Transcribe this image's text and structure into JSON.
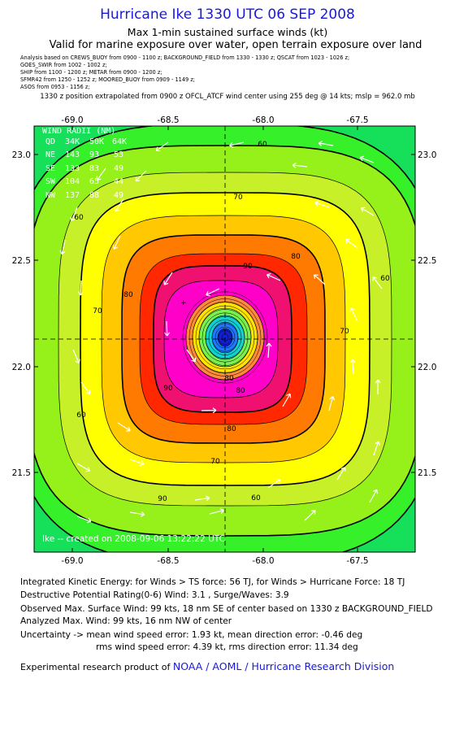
{
  "header": {
    "title": "Hurricane Ike 1330 UTC 06 SEP 2008",
    "subtitle": "Max 1-min sustained surface winds (kt)",
    "valid": "Valid for marine exposure over water, open terrain exposure over land",
    "sources": [
      "Analysis based on   CREWS_BUOY from 0900 - 1100 z;  BACKGROUND_FIELD from 1330 - 1330 z;  QSCAT from 1023 - 1026 z;",
      "GOES_SWIR from 1002 - 1002 z;",
      "SHIP from 1100 - 1200 z;  METAR from 0900 - 1200 z;",
      "SFMR42 from 1250 - 1252 z;  MOORED_BUOY from 0909 - 1149 z;",
      "ASOS from 0953 - 1156 z;"
    ],
    "position_note": "1330 z position extrapolated from 0900 z OFCL_ATCF wind center using 255 deg @ 14 kts; mslp = 962.0 mb"
  },
  "map": {
    "lon_ticks": [
      "-69.0",
      "-68.5",
      "-68.0",
      "-67.5"
    ],
    "lat_ticks": [
      "23.0",
      "22.5",
      "22.0",
      "21.5"
    ],
    "contour_levels": [
      60,
      70,
      80,
      90
    ],
    "contour_labels": [
      "60",
      "60",
      "60",
      "60",
      "60",
      "70",
      "70",
      "70",
      "70",
      "80",
      "80",
      "80",
      "80",
      "80",
      "90",
      "90",
      "90",
      "60"
    ],
    "colors": {
      "c40": "#16e05a",
      "c50": "#36f02a",
      "c60": "#96f01a",
      "c65": "#c8f028",
      "c70": "#ffff00",
      "c75": "#ffc800",
      "c80": "#ff7a00",
      "c85": "#ff2800",
      "c90": "#f01070",
      "c95": "#ff00c8",
      "core1": "#ff8a3a",
      "core2": "#ffe400",
      "core3": "#78f050",
      "core4": "#10d0d0",
      "core5": "#1e78ff",
      "core6": "#1020d0"
    },
    "wind_radii": {
      "header": [
        "QD",
        "34K",
        "50K",
        "64K"
      ],
      "title": "WIND RADII (NM)",
      "rows": [
        [
          "NE",
          "143",
          "93",
          "53"
        ],
        [
          "SE",
          "133",
          "83",
          "49"
        ],
        [
          "SW",
          "104",
          "65",
          "44"
        ],
        [
          "NW",
          "137",
          "88",
          "49"
        ]
      ]
    },
    "created": "Ike -- created on 2008-09-06 13:22:22 UTC"
  },
  "footer": {
    "ike": "Integrated Kinetic Energy:  for Winds > TS force: 56 TJ,  for Winds > Hurricane Force: 18 TJ",
    "dpr": "Destructive Potential Rating(0-6)   Wind: 3.1 , Surge/Waves: 3.9",
    "observed": "Observed Max. Surface Wind: 99 kts, 18 nm SE of center based on 1330 z BACKGROUND_FIELD",
    "analyzed": "Analyzed Max. Wind: 99 kts, 16 nm NW of center",
    "uncertainty1": "Uncertainty -> mean wind speed error: 1.93 kt,   mean direction error:  -0.46 deg",
    "uncertainty2": "rms wind speed error: 4.39 kt,   rms direction error: 11.34 deg",
    "credit_prefix": "Experimental research product of",
    "credit_org": "NOAA / AOML / Hurricane Research Division"
  }
}
